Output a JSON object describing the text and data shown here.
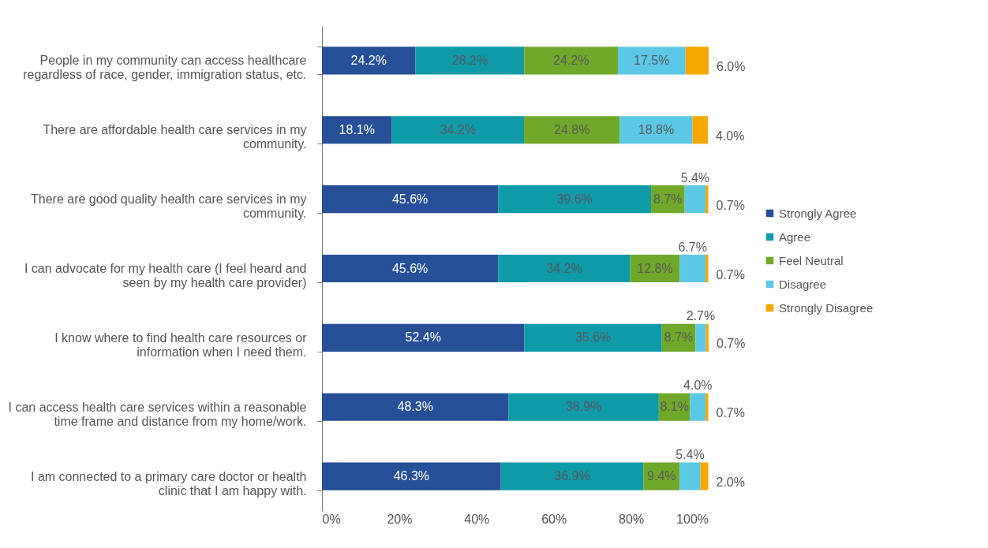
{
  "chart_data": {
    "type": "bar",
    "orientation": "horizontal",
    "stacked": true,
    "legend": "right",
    "grid": false,
    "categories": [
      "People in my community can access healthcare regardless of race, gender, immigration status, etc.",
      "There are affordable health care services in my community.",
      "There are good quality health care services in my community.",
      "I can advocate for my health care (I feel heard and seen by my health care provider)",
      "I know where to find health care resources or information when I need them.",
      "I can access health care services within a reasonable time frame and distance from my home/work.",
      "I am connected to a primary care doctor or health clinic that I am happy with."
    ],
    "xlim": [
      0,
      100.1
    ],
    "xticks": [
      {
        "value": 0,
        "label": "0%"
      },
      {
        "value": 20,
        "label": "20%"
      },
      {
        "value": 40,
        "label": "40%"
      },
      {
        "value": 60,
        "label": "60%"
      },
      {
        "value": 80,
        "label": "80%"
      },
      {
        "value": 100,
        "label": "100%"
      }
    ],
    "series": [
      {
        "name": "Strongly Agree",
        "color": "#264f97",
        "values": [
          24.2,
          18.1,
          45.6,
          45.6,
          52.4,
          48.3,
          46.3
        ],
        "value_labels": [
          "24.2%",
          "18.1%",
          "45.6%",
          "45.6%",
          "52.4%",
          "48.3%",
          "46.3%"
        ]
      },
      {
        "name": "Agree",
        "color": "#0f9aa8",
        "values": [
          28.2,
          34.2,
          39.6,
          34.2,
          35.6,
          38.9,
          36.9
        ],
        "value_labels": [
          "28.2%",
          "34.2%",
          "39.6%",
          "34.2%",
          "35.6%",
          "38.9%",
          "36.9%"
        ]
      },
      {
        "name": "Feel Neutral",
        "color": "#70a82a",
        "values": [
          24.2,
          24.8,
          8.7,
          12.8,
          8.7,
          8.1,
          9.4
        ],
        "value_labels": [
          "24.2%",
          "24.8%",
          "8.7%",
          "12.8%",
          "8.7%",
          "8.1%",
          "9.4%"
        ]
      },
      {
        "name": "Disagree",
        "color": "#5bc8e6",
        "values": [
          17.5,
          18.8,
          5.4,
          6.7,
          2.7,
          4.0,
          5.4
        ],
        "value_labels": [
          "17.5%",
          "18.8%",
          "5.4%",
          "6.7%",
          "2.7%",
          "4.0%",
          "5.4%"
        ]
      },
      {
        "name": "Strongly Disagree",
        "color": "#f5a800",
        "values": [
          6.0,
          4.0,
          0.7,
          0.7,
          0.7,
          0.7,
          2.0
        ],
        "value_labels": [
          "6.0%",
          "4.0%",
          "0.7%",
          "0.7%",
          "0.7%",
          "0.7%",
          "2.0%"
        ]
      }
    ]
  }
}
